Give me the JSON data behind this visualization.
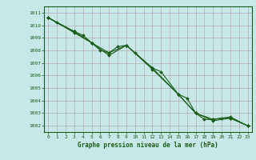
{
  "background_color": "#c8e8e8",
  "grid_color": "#b0b0b0",
  "line_color": "#1a5c1a",
  "marker_color": "#1a5c1a",
  "xlabel": "Graphe pression niveau de la mer (hPa)",
  "xlabel_color": "#1a5c1a",
  "tick_color": "#1a5c1a",
  "spine_color": "#1a5c1a",
  "ylim": [
    1001.5,
    1011.5
  ],
  "xlim": [
    -0.5,
    23.5
  ],
  "yticks": [
    1002,
    1003,
    1004,
    1005,
    1006,
    1007,
    1008,
    1009,
    1010,
    1011
  ],
  "xticks": [
    0,
    1,
    2,
    3,
    4,
    5,
    6,
    7,
    8,
    9,
    10,
    11,
    12,
    13,
    14,
    15,
    16,
    17,
    18,
    19,
    20,
    21,
    22,
    23
  ],
  "series_raw": [
    {
      "x": [
        0,
        1,
        3,
        4,
        5,
        6,
        7,
        8,
        9,
        10,
        12,
        13,
        15,
        16,
        17,
        18,
        19,
        20,
        21,
        23
      ],
      "y": [
        1010.6,
        1010.2,
        1009.5,
        1009.2,
        1008.6,
        1008.0,
        1007.8,
        1008.3,
        1008.4,
        1007.8,
        1006.6,
        1006.3,
        1004.5,
        1004.2,
        1003.0,
        1002.5,
        1002.5,
        1002.6,
        1002.6,
        1002.0
      ]
    },
    {
      "x": [
        0,
        3,
        5,
        7,
        9,
        12,
        15,
        17,
        19,
        21,
        23
      ],
      "y": [
        1010.6,
        1009.4,
        1008.6,
        1007.6,
        1008.4,
        1006.5,
        1004.5,
        1003.0,
        1002.4,
        1002.6,
        1002.0
      ]
    },
    {
      "x": [
        0,
        3,
        5,
        7,
        9,
        12,
        15,
        17,
        19,
        21,
        23
      ],
      "y": [
        1010.6,
        1009.5,
        1008.6,
        1007.8,
        1008.4,
        1006.6,
        1004.5,
        1003.0,
        1002.5,
        1002.7,
        1002.0
      ]
    }
  ]
}
